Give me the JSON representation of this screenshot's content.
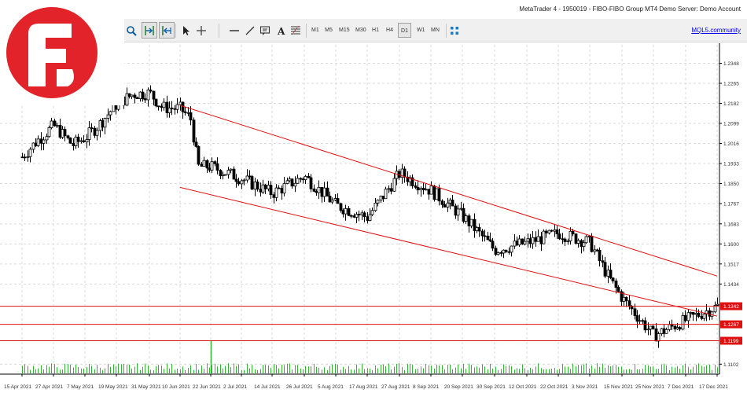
{
  "window": {
    "title": "MetaTrader 4 - 1950019 - FIBO-FIBO Group MT4 Demo Server: Demo Account"
  },
  "toolbar": {
    "timeframes": [
      "M1",
      "M5",
      "M15",
      "M30",
      "H1",
      "H4",
      "D1",
      "W1",
      "MN"
    ],
    "active_timeframe": "D1",
    "mql5_label": "MQL5.community",
    "tools": [
      "zoom-in-icon",
      "autoscroll-icon",
      "chart-shift-icon",
      "cursor-icon",
      "crosshair-icon",
      "horizontal-line-icon",
      "trendline-icon",
      "text-label-icon",
      "text-icon",
      "fibonacci-icon",
      "indicators-icon"
    ]
  },
  "branding": {
    "logo_color": "#e2242a"
  },
  "colors": {
    "grid": "#d9d9d9",
    "candle": "#000000",
    "channel": "#e01010",
    "level_line": "#e01010",
    "level_tag": "#e01010",
    "volume": "#32b432"
  },
  "chart_data": {
    "type": "candlestick",
    "symbol_timeframe": "D1",
    "ylim": [
      1.1064,
      1.2431
    ],
    "y_ticks": [
      "1.2348",
      "1.2265",
      "1.2182",
      "1.2099",
      "1.2016",
      "1.1933",
      "1.1850",
      "1.1767",
      "1.1683",
      "1.1600",
      "1.1517",
      "1.1434",
      "1.1102"
    ],
    "x_tick_labels": [
      "15 Apr 2021",
      "27 Apr 2021",
      "7 May 2021",
      "19 May 2021",
      "31 May 2021",
      "10 Jun 2021",
      "22 Jun 2021",
      "2 Jul 2021",
      "14 Jul 2021",
      "26 Jul 2021",
      "5 Aug 2021",
      "17 Aug 2021",
      "27 Aug 2021",
      "8 Sep 2021",
      "20 Sep 2021",
      "30 Sep 2021",
      "12 Oct 2021",
      "22 Oct 2021",
      "3 Nov 2021",
      "15 Nov 2021",
      "25 Nov 2021",
      "7 Dec 2021",
      "17 Dec 2021"
    ],
    "horizontal_levels": [
      {
        "label": "1.1342",
        "value": 1.1342
      },
      {
        "label": "1.1267",
        "value": 1.1267
      },
      {
        "label": "1.1199",
        "value": 1.1199
      }
    ],
    "channel": {
      "upper": [
        {
          "x": "10 Jun 2021",
          "y": 1.2174
        },
        {
          "x": "17 Dec 2021",
          "y": 1.1467
        }
      ],
      "lower": [
        {
          "x": "10 Jun 2021",
          "y": 1.1834
        },
        {
          "x": "17 Dec 2021",
          "y": 1.1301
        }
      ]
    },
    "price_path": [
      {
        "date": "15 Apr 2021",
        "close": 1.196
      },
      {
        "date": "20 Apr 2021",
        "close": 1.202
      },
      {
        "date": "27 Apr 2021",
        "close": 1.209
      },
      {
        "date": "3 May 2021",
        "close": 1.201
      },
      {
        "date": "7 May 2021",
        "close": 1.204
      },
      {
        "date": "12 May 2021",
        "close": 1.209
      },
      {
        "date": "19 May 2021",
        "close": 1.218
      },
      {
        "date": "25 May 2021",
        "close": 1.222
      },
      {
        "date": "31 May 2021",
        "close": 1.2225
      },
      {
        "date": "4 Jun 2021",
        "close": 1.2165
      },
      {
        "date": "10 Jun 2021",
        "close": 1.216
      },
      {
        "date": "14 Jun 2021",
        "close": 1.212
      },
      {
        "date": "17 Jun 2021",
        "close": 1.192
      },
      {
        "date": "22 Jun 2021",
        "close": 1.192
      },
      {
        "date": "2 Jul 2021",
        "close": 1.187
      },
      {
        "date": "14 Jul 2021",
        "close": 1.181
      },
      {
        "date": "26 Jul 2021",
        "close": 1.188
      },
      {
        "date": "5 Aug 2021",
        "close": 1.176
      },
      {
        "date": "17 Aug 2021",
        "close": 1.171
      },
      {
        "date": "27 Aug 2021",
        "close": 1.1893
      },
      {
        "date": "8 Sep 2021",
        "close": 1.182
      },
      {
        "date": "20 Sep 2021",
        "close": 1.1715
      },
      {
        "date": "30 Sep 2021",
        "close": 1.1575
      },
      {
        "date": "12 Oct 2021",
        "close": 1.1605
      },
      {
        "date": "22 Oct 2021",
        "close": 1.1645
      },
      {
        "date": "3 Nov 2021",
        "close": 1.1605
      },
      {
        "date": "10 Nov 2021",
        "close": 1.146
      },
      {
        "date": "15 Nov 2021",
        "close": 1.1375
      },
      {
        "date": "25 Nov 2021",
        "close": 1.122
      },
      {
        "date": "7 Dec 2021",
        "close": 1.1285
      },
      {
        "date": "17 Dec 2021",
        "close": 1.1342
      }
    ],
    "volume_spike": {
      "date": "22 Jun 2021"
    },
    "legend": "none",
    "grid": true
  }
}
